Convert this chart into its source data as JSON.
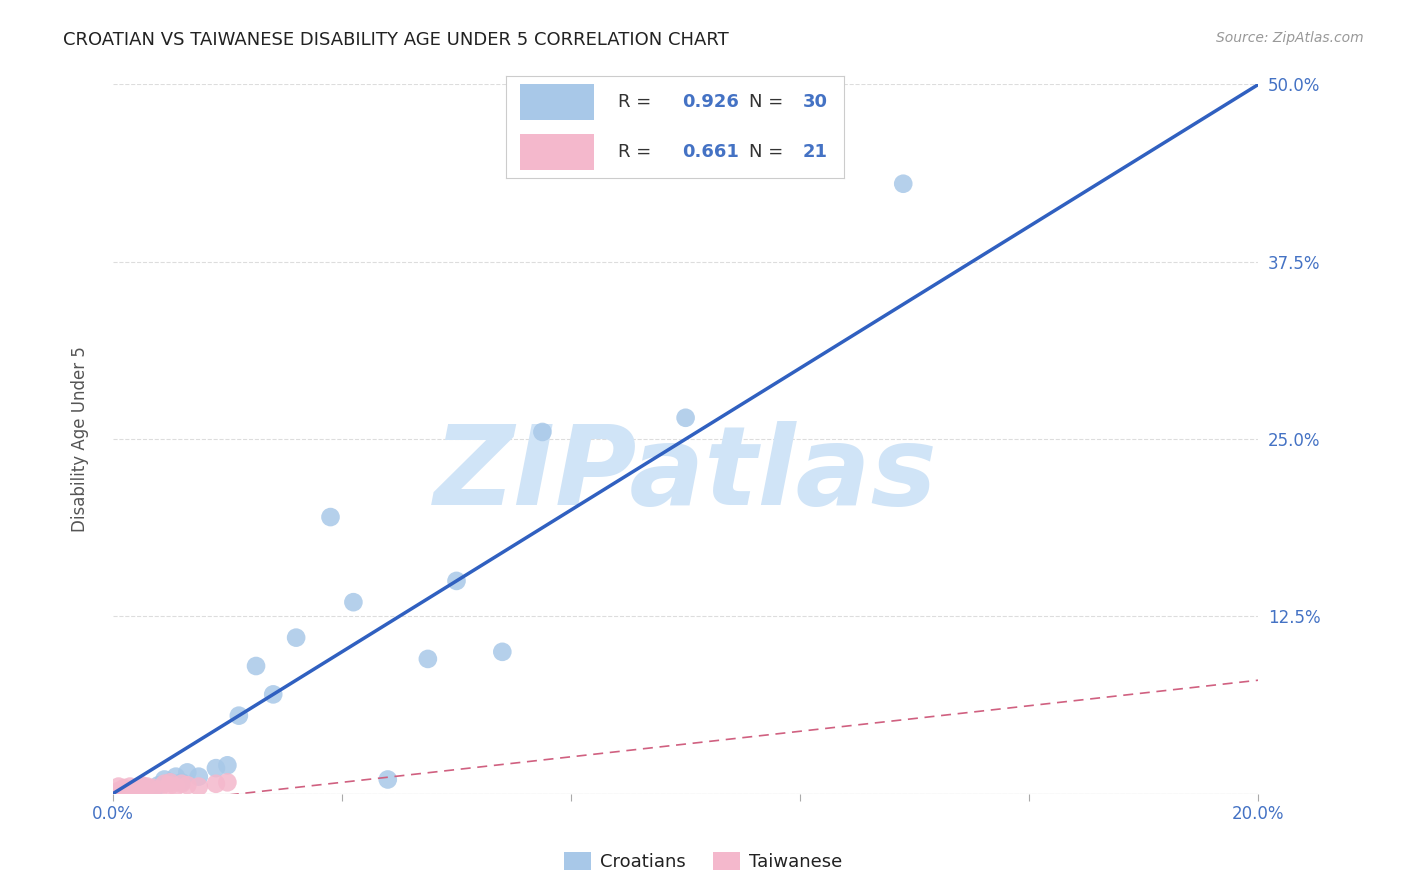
{
  "title": "CROATIAN VS TAIWANESE DISABILITY AGE UNDER 5 CORRELATION CHART",
  "source": "Source: ZipAtlas.com",
  "ylabel": "Disability Age Under 5",
  "xlabel": "",
  "background_color": "#ffffff",
  "title_color": "#222222",
  "title_fontsize": 13,
  "tick_label_color": "#4472c4",
  "watermark_text": "ZIPatlas",
  "watermark_color": "#d0e4f7",
  "croatian_scatter_x": [
    0.001,
    0.002,
    0.003,
    0.004,
    0.005,
    0.005,
    0.006,
    0.007,
    0.008,
    0.009,
    0.01,
    0.011,
    0.012,
    0.013,
    0.015,
    0.018,
    0.02,
    0.022,
    0.025,
    0.028,
    0.032,
    0.038,
    0.042,
    0.048,
    0.055,
    0.06,
    0.068,
    0.075,
    0.1,
    0.138
  ],
  "croatian_scatter_y": [
    0.001,
    0.001,
    0.002,
    0.001,
    0.002,
    0.005,
    0.004,
    0.003,
    0.006,
    0.01,
    0.008,
    0.012,
    0.008,
    0.015,
    0.012,
    0.018,
    0.02,
    0.055,
    0.09,
    0.07,
    0.11,
    0.195,
    0.135,
    0.01,
    0.095,
    0.15,
    0.1,
    0.255,
    0.265,
    0.43
  ],
  "taiwanese_scatter_x": [
    0.001,
    0.001,
    0.002,
    0.002,
    0.003,
    0.003,
    0.004,
    0.005,
    0.005,
    0.006,
    0.007,
    0.008,
    0.009,
    0.01,
    0.01,
    0.011,
    0.012,
    0.013,
    0.015,
    0.018,
    0.02
  ],
  "taiwanese_scatter_y": [
    0.002,
    0.005,
    0.003,
    0.004,
    0.002,
    0.005,
    0.003,
    0.004,
    0.006,
    0.005,
    0.004,
    0.003,
    0.007,
    0.006,
    0.008,
    0.005,
    0.007,
    0.006,
    0.005,
    0.007,
    0.008
  ],
  "croatian_line_x": [
    0.0,
    0.2
  ],
  "croatian_line_y": [
    0.0,
    0.5
  ],
  "taiwanese_line_x": [
    0.0,
    0.2
  ],
  "taiwanese_line_y": [
    -0.01,
    0.08
  ],
  "croatian_color": "#a8c8e8",
  "croatian_line_color": "#3060c0",
  "taiwanese_color": "#f4b8cc",
  "taiwanese_line_color": "#d06080",
  "R_croatian": "0.926",
  "N_croatian": "30",
  "R_taiwanese": "0.661",
  "N_taiwanese": "21",
  "xlim": [
    0.0,
    0.2
  ],
  "ylim": [
    0.0,
    0.5
  ],
  "xticks": [
    0.0,
    0.04,
    0.08,
    0.12,
    0.16,
    0.2
  ],
  "yticks": [
    0.0,
    0.125,
    0.25,
    0.375,
    0.5
  ],
  "xtick_labels": [
    "0.0%",
    "",
    "",
    "",
    "",
    "20.0%"
  ],
  "ytick_labels_right": [
    "",
    "12.5%",
    "25.0%",
    "37.5%",
    "50.0%"
  ]
}
